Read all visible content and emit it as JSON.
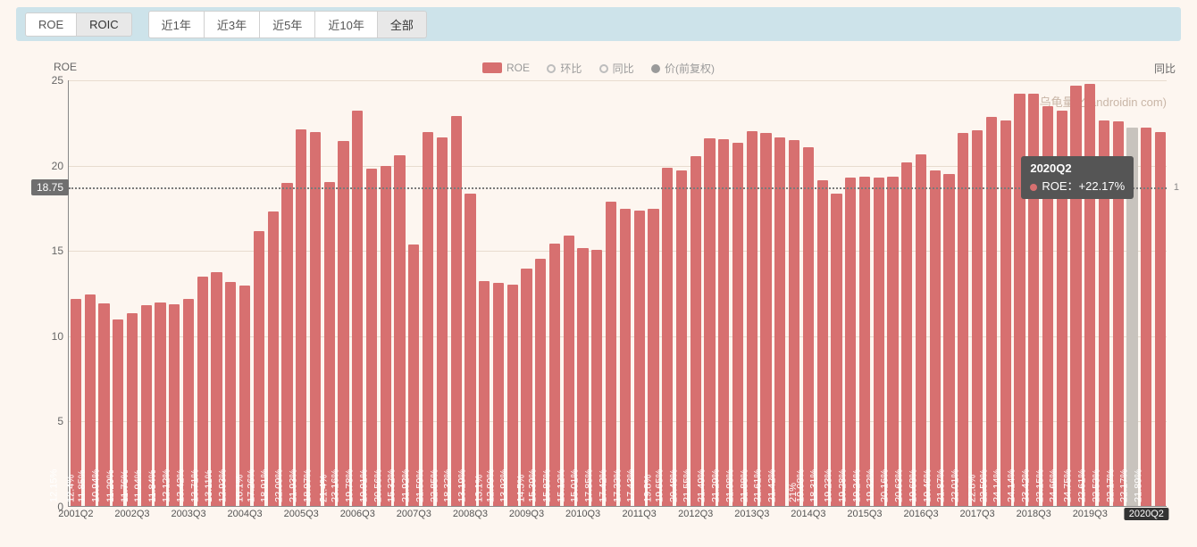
{
  "tabs_metric": [
    {
      "label": "ROE",
      "active": false
    },
    {
      "label": "ROIC",
      "active": true
    }
  ],
  "tabs_period": [
    {
      "label": "近1年",
      "active": false
    },
    {
      "label": "近3年",
      "active": false
    },
    {
      "label": "近5年",
      "active": false
    },
    {
      "label": "近10年",
      "active": false
    },
    {
      "label": "全部",
      "active": true
    }
  ],
  "yaxis_left_title": "ROE",
  "yaxis_right_title": "同比",
  "legend": {
    "bar": "ROE",
    "line1": "环比",
    "line2": "同比",
    "line3": "价(前复权)"
  },
  "watermark": "乌龟量化(androidin             com)",
  "avg_line": 18.75,
  "tooltip": {
    "period": "2020Q2",
    "metric": "ROE",
    "value": "+22.17%"
  },
  "hover_label": "2020Q2",
  "chart": {
    "ymin": 0,
    "ymax": 25,
    "ytick_step": 5,
    "bar_color": "#d77070",
    "highlight_color": "#c8c3bd",
    "grid_color": "#e8dccf",
    "bg": "#fdf6f0",
    "avg_color": "#7a7a7a",
    "badge_bg": "#6f6f6f",
    "topbar_bg": "#cde3ea",
    "xtick_labels": [
      "2001Q2",
      "2002Q3",
      "2003Q3",
      "2004Q3",
      "2005Q3",
      "2006Q3",
      "2007Q3",
      "2008Q3",
      "2009Q3",
      "2010Q3",
      "2011Q3",
      "2012Q3",
      "2013Q3",
      "2014Q3",
      "2015Q3",
      "2016Q3",
      "2017Q3",
      "2018Q3",
      "2019Q3",
      "",
      "3"
    ],
    "xtick_every": 4,
    "bars": [
      {
        "p": "2001Q2",
        "v": 12.15
      },
      {
        "p": "2001Q3",
        "v": 12.4
      },
      {
        "p": "2001Q4",
        "v": 11.85
      },
      {
        "p": "2002Q1",
        "v": 10.94
      },
      {
        "p": "2002Q2",
        "v": 11.29
      },
      {
        "p": "2002Q3",
        "v": 11.76
      },
      {
        "p": "2002Q4",
        "v": 11.94
      },
      {
        "p": "2003Q1",
        "v": 11.84
      },
      {
        "p": "2003Q2",
        "v": 12.12
      },
      {
        "p": "2003Q3",
        "v": 13.42
      },
      {
        "p": "2003Q4",
        "v": 13.71
      },
      {
        "p": "2004Q1",
        "v": 13.11
      },
      {
        "p": "2004Q2",
        "v": 12.93
      },
      {
        "p": "2004Q3",
        "v": 16.1
      },
      {
        "p": "2004Q4",
        "v": 17.26
      },
      {
        "p": "2005Q1",
        "v": 18.91
      },
      {
        "p": "2005Q2",
        "v": 22.09
      },
      {
        "p": "2005Q3",
        "v": 21.93
      },
      {
        "p": "2005Q4",
        "v": 18.97
      },
      {
        "p": "2006Q1",
        "v": 21.4
      },
      {
        "p": "2006Q2",
        "v": 23.16
      },
      {
        "p": "2006Q3",
        "v": 19.78
      },
      {
        "p": "2006Q4",
        "v": 19.91
      },
      {
        "p": "2007Q1",
        "v": 20.56
      },
      {
        "p": "2007Q2",
        "v": 15.32
      },
      {
        "p": "2007Q3",
        "v": 21.92
      },
      {
        "p": "2007Q4",
        "v": 21.59
      },
      {
        "p": "2008Q1",
        "v": 22.85
      },
      {
        "p": "2008Q2",
        "v": 18.32
      },
      {
        "p": "2008Q3",
        "v": 13.19
      },
      {
        "p": "2008Q4",
        "v": 13.1
      },
      {
        "p": "2009Q1",
        "v": 12.99
      },
      {
        "p": "2009Q2",
        "v": 13.93
      },
      {
        "p": "2009Q3",
        "v": 14.5
      },
      {
        "p": "2009Q4",
        "v": 15.39
      },
      {
        "p": "2010Q1",
        "v": 15.87
      },
      {
        "p": "2010Q2",
        "v": 15.12
      },
      {
        "p": "2010Q3",
        "v": 15.01
      },
      {
        "p": "2010Q4",
        "v": 17.85
      },
      {
        "p": "2011Q1",
        "v": 17.42
      },
      {
        "p": "2011Q2",
        "v": 17.33
      },
      {
        "p": "2011Q3",
        "v": 17.43
      },
      {
        "p": "2011Q4",
        "v": 19.8
      },
      {
        "p": "2012Q1",
        "v": 19.65
      },
      {
        "p": "2012Q2",
        "v": 20.48
      },
      {
        "p": "2012Q3",
        "v": 21.55
      },
      {
        "p": "2012Q4",
        "v": 21.49
      },
      {
        "p": "2013Q1",
        "v": 21.29
      },
      {
        "p": "2013Q2",
        "v": 21.98
      },
      {
        "p": "2013Q3",
        "v": 21.88
      },
      {
        "p": "2013Q4",
        "v": 21.61
      },
      {
        "p": "2014Q1",
        "v": 21.42
      },
      {
        "p": "2014Q2",
        "v": 21
      },
      {
        "p": "2014Q3",
        "v": 19.08
      },
      {
        "p": "2014Q4",
        "v": 18.31
      },
      {
        "p": "2015Q1",
        "v": 19.23
      },
      {
        "p": "2015Q2",
        "v": 19.28
      },
      {
        "p": "2015Q3",
        "v": 19.24
      },
      {
        "p": "2015Q4",
        "v": 19.32
      },
      {
        "p": "2016Q1",
        "v": 20.16
      },
      {
        "p": "2016Q2",
        "v": 20.63
      },
      {
        "p": "2016Q3",
        "v": 19.68
      },
      {
        "p": "2016Q4",
        "v": 19.46
      },
      {
        "p": "2017Q1",
        "v": 21.87
      },
      {
        "p": "2017Q2",
        "v": 22.01
      },
      {
        "p": "2017Q3",
        "v": 22.8
      },
      {
        "p": "2017Q4",
        "v": 22.59
      },
      {
        "p": "2018Q1",
        "v": 24.14
      },
      {
        "p": "2018Q2",
        "v": 24.14
      },
      {
        "p": "2018Q3",
        "v": 23.42
      },
      {
        "p": "2018Q4",
        "v": 23.15
      },
      {
        "p": "2019Q1",
        "v": 24.66
      },
      {
        "p": "2019Q2",
        "v": 24.75
      },
      {
        "p": "2019Q3",
        "v": 22.61
      },
      {
        "p": "2019Q4",
        "v": 22.53
      },
      {
        "p": "2020Q1",
        "v": 22.17,
        "hl": true
      },
      {
        "p": "2020Q2",
        "v": 22.17
      },
      {
        "p": "2020Q3",
        "v": 21.89
      }
    ]
  }
}
